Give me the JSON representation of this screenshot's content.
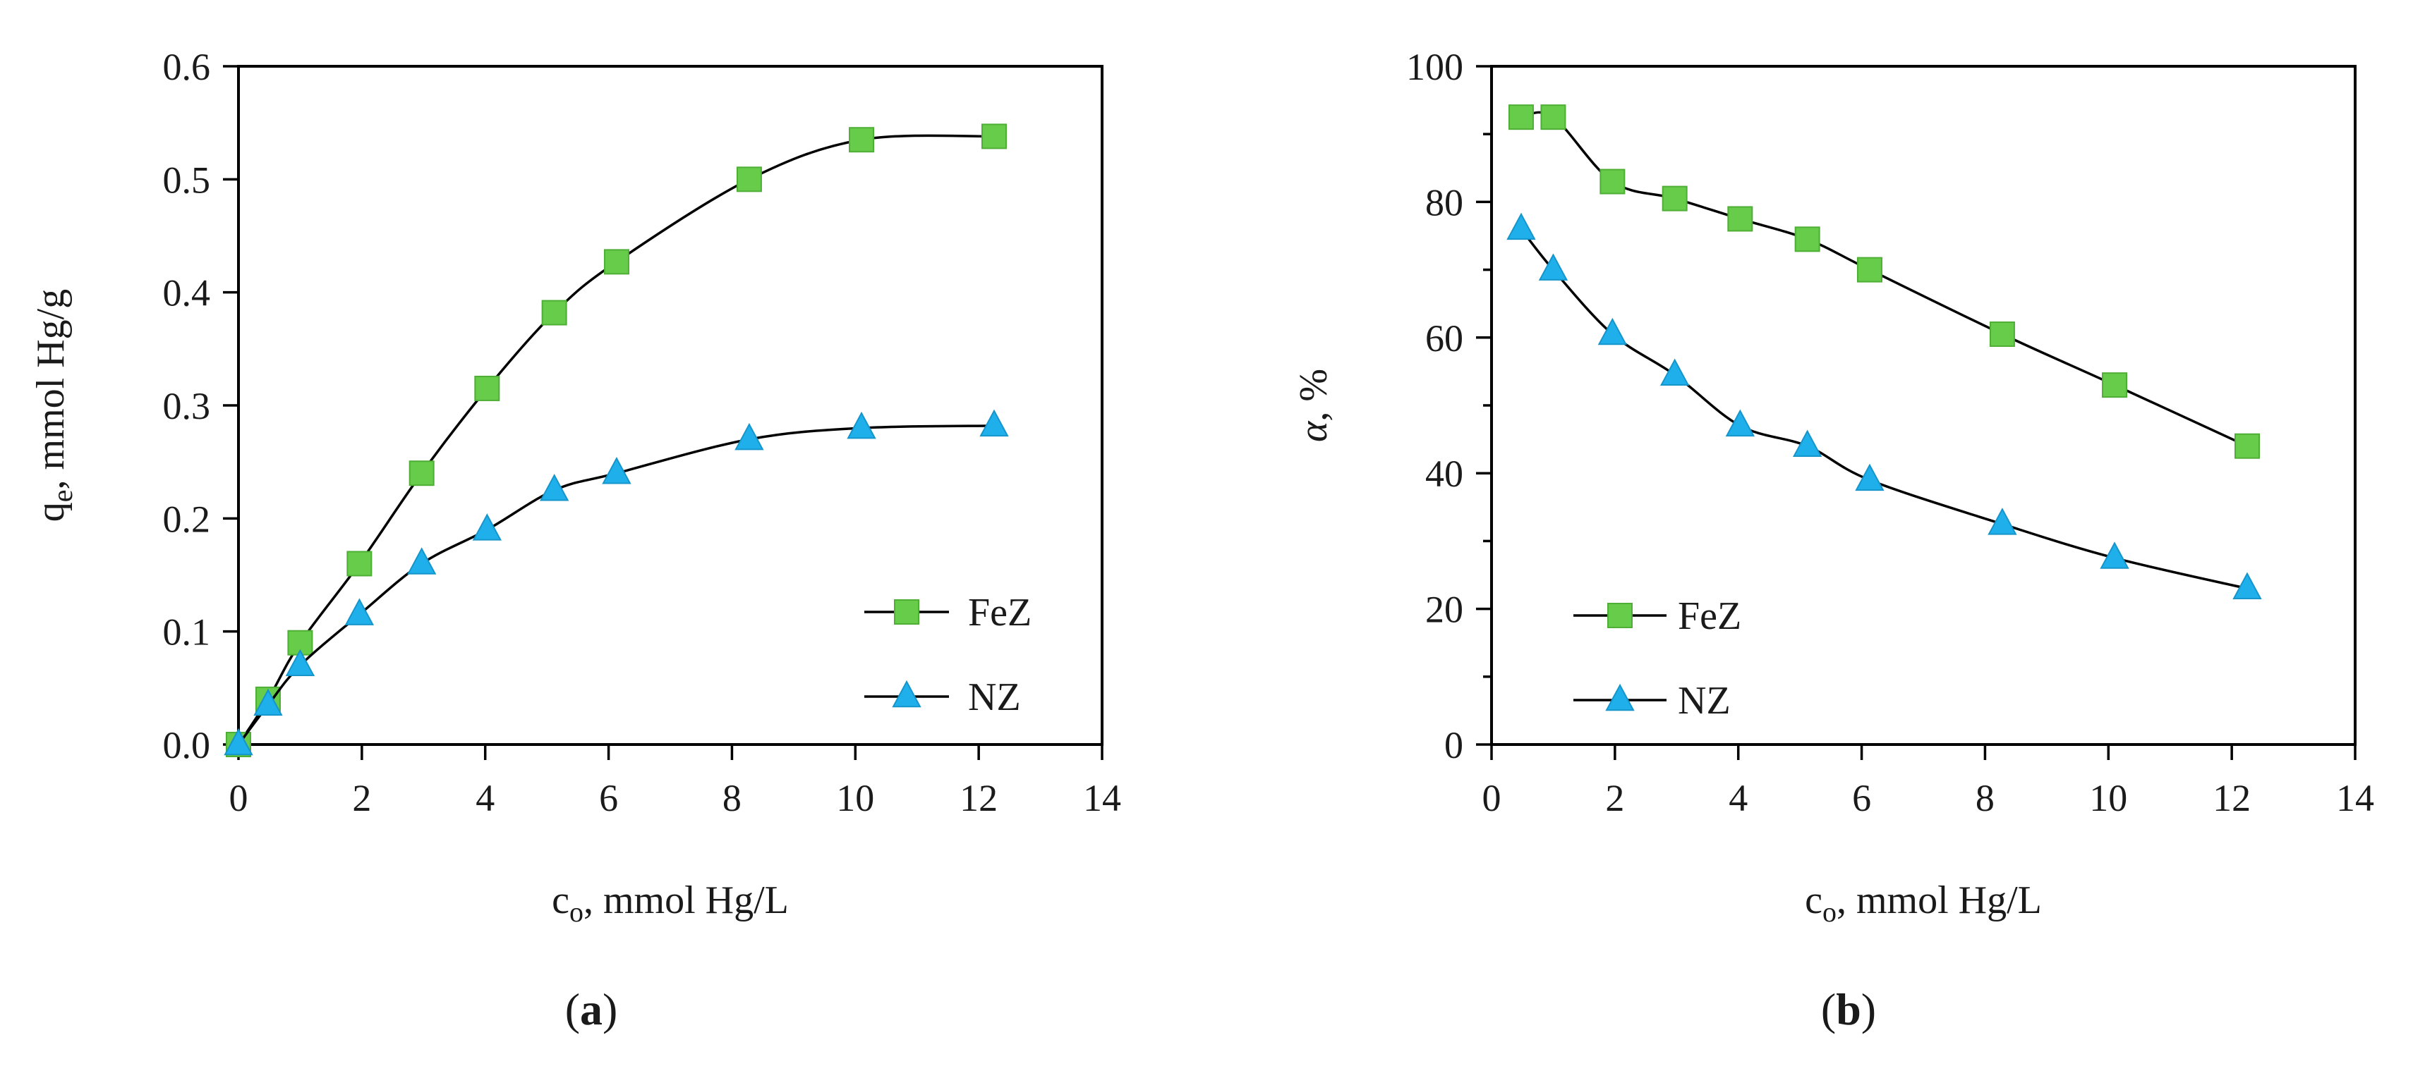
{
  "chart_data": [
    {
      "type": "line",
      "panel": "a",
      "caption_label": "a",
      "title": "",
      "xlabel": "c",
      "xlabel_sub": "o",
      "xlabel_rest": ", mmol Hg/L",
      "ylabel": "q",
      "ylabel_sub": "e",
      "ylabel_rest": ", mmol Hg/g",
      "xlim": [
        0,
        14
      ],
      "ylim": [
        0,
        0.6
      ],
      "xticks": [
        "0",
        "2",
        "4",
        "6",
        "8",
        "10",
        "12",
        "14"
      ],
      "yticks": [
        "0.0",
        "0.1",
        "0.2",
        "0.3",
        "0.4",
        "0.5",
        "0.6"
      ],
      "grid": false,
      "legend_position": "bottom-right",
      "series": [
        {
          "name": "FeZ",
          "marker": "square",
          "color": "#66cc4a",
          "x": [
            0,
            0.48,
            1.0,
            1.96,
            2.97,
            4.03,
            5.12,
            6.13,
            8.28,
            10.1,
            12.25
          ],
          "y": [
            0.0,
            0.04,
            0.09,
            0.16,
            0.24,
            0.315,
            0.382,
            0.427,
            0.5,
            0.535,
            0.538
          ]
        },
        {
          "name": "NZ",
          "marker": "triangle",
          "color": "#1fb0ec",
          "x": [
            0,
            0.48,
            1.0,
            1.96,
            2.97,
            4.03,
            5.12,
            6.13,
            8.28,
            10.1,
            12.25
          ],
          "y": [
            0.0,
            0.035,
            0.07,
            0.115,
            0.16,
            0.19,
            0.225,
            0.24,
            0.27,
            0.28,
            0.282
          ]
        }
      ]
    },
    {
      "type": "line",
      "panel": "b",
      "caption_label": "b",
      "title": "",
      "xlabel": "c",
      "xlabel_sub": "o",
      "xlabel_rest": ", mmol Hg/L",
      "ylabel": "α",
      "ylabel_rest": ", %",
      "xlim": [
        0,
        14
      ],
      "ylim": [
        0,
        100
      ],
      "xticks": [
        "0",
        "2",
        "4",
        "6",
        "8",
        "10",
        "12",
        "14"
      ],
      "yticks": [
        "0",
        "20",
        "40",
        "60",
        "80",
        "100"
      ],
      "grid": false,
      "legend_position": "bottom-left",
      "series": [
        {
          "name": "FeZ",
          "marker": "square",
          "color": "#66cc4a",
          "x": [
            0.48,
            1.0,
            1.96,
            2.97,
            4.03,
            5.12,
            6.13,
            8.28,
            10.1,
            12.25
          ],
          "y": [
            92.5,
            92.5,
            83,
            80.5,
            77.5,
            74.5,
            70,
            60.5,
            53,
            44
          ]
        },
        {
          "name": "NZ",
          "marker": "triangle",
          "color": "#1fb0ec",
          "x": [
            0.48,
            1.0,
            1.96,
            2.97,
            4.03,
            5.12,
            6.13,
            8.28,
            10.1,
            12.25
          ],
          "y": [
            76,
            70,
            60.5,
            54.5,
            47,
            44,
            39,
            32.5,
            27.5,
            23
          ]
        }
      ]
    }
  ]
}
